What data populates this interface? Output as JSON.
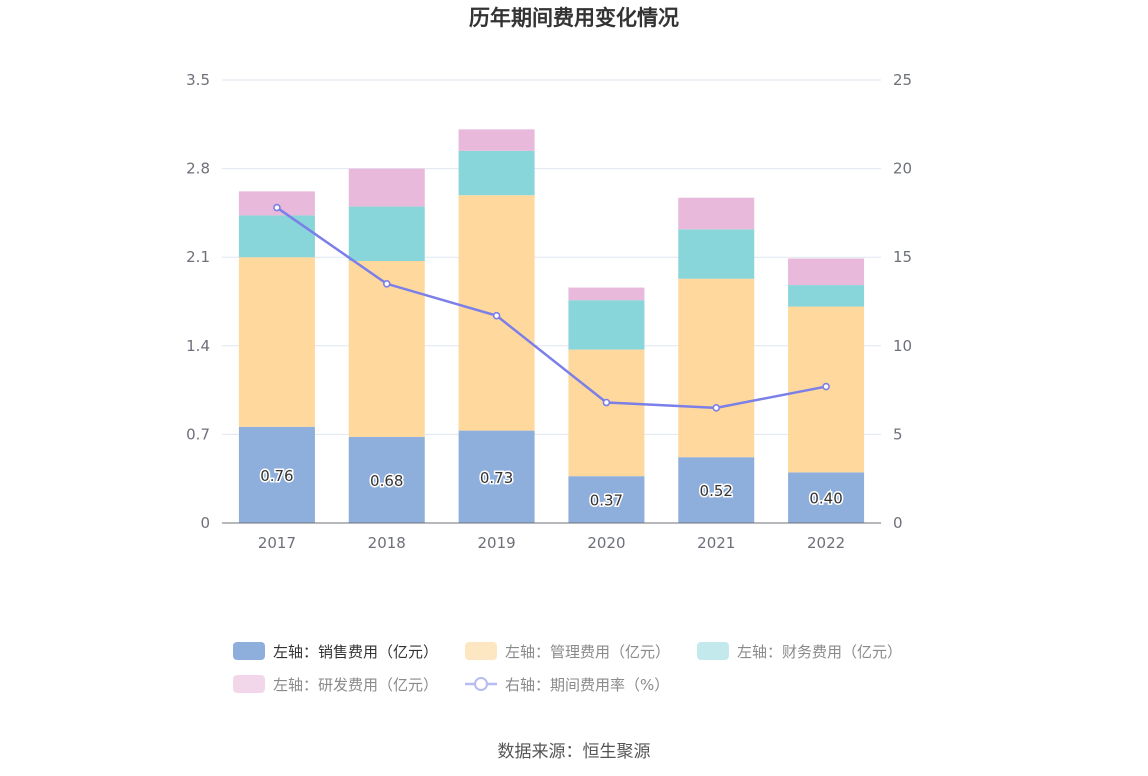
{
  "chart_data": {
    "type": "bar",
    "stacked": true,
    "title": "历年期间费用变化情况",
    "categories": [
      "2017",
      "2018",
      "2019",
      "2020",
      "2021",
      "2022"
    ],
    "y_left": {
      "ticks": [
        "0",
        "0.7",
        "1.4",
        "2.1",
        "2.8",
        "3.5"
      ],
      "range": [
        0,
        3.5
      ]
    },
    "y_right": {
      "ticks": [
        "0",
        "5",
        "10",
        "15",
        "20",
        "25"
      ],
      "range": [
        0,
        25
      ]
    },
    "grid": true,
    "legend_position": "bottom",
    "series": [
      {
        "name": "左轴：销售费用（亿元）",
        "axis": "left",
        "color": "#8eaedc",
        "values": [
          0.76,
          0.68,
          0.73,
          0.37,
          0.52,
          0.4
        ],
        "labels": [
          "0.76",
          "0.68",
          "0.73",
          "0.37",
          "0.52",
          "0.40"
        ]
      },
      {
        "name": "左轴：管理费用（亿元）",
        "axis": "left",
        "color": "#fed89c",
        "values": [
          1.34,
          1.39,
          1.86,
          1.0,
          1.41,
          1.31
        ]
      },
      {
        "name": "左轴：财务费用（亿元）",
        "axis": "left",
        "color": "#88d6da",
        "values": [
          0.33,
          0.43,
          0.35,
          0.39,
          0.39,
          0.17
        ]
      },
      {
        "name": "左轴：研发费用（亿元）",
        "axis": "left",
        "color": "#e8b9da",
        "values": [
          0.19,
          0.3,
          0.17,
          0.1,
          0.25,
          0.21
        ]
      },
      {
        "name": "右轴：期间费用率（%）",
        "axis": "right",
        "type": "line",
        "color": "#7b7fe8",
        "values": [
          17.8,
          13.5,
          11.7,
          6.8,
          6.5,
          7.7
        ]
      }
    ],
    "legend_colors": [
      "#8eaedc",
      "#fde6c2",
      "#c3e9ec",
      "#f2d7ea",
      "#b8bcf2"
    ]
  },
  "source_text": "数据来源：恒生聚源"
}
